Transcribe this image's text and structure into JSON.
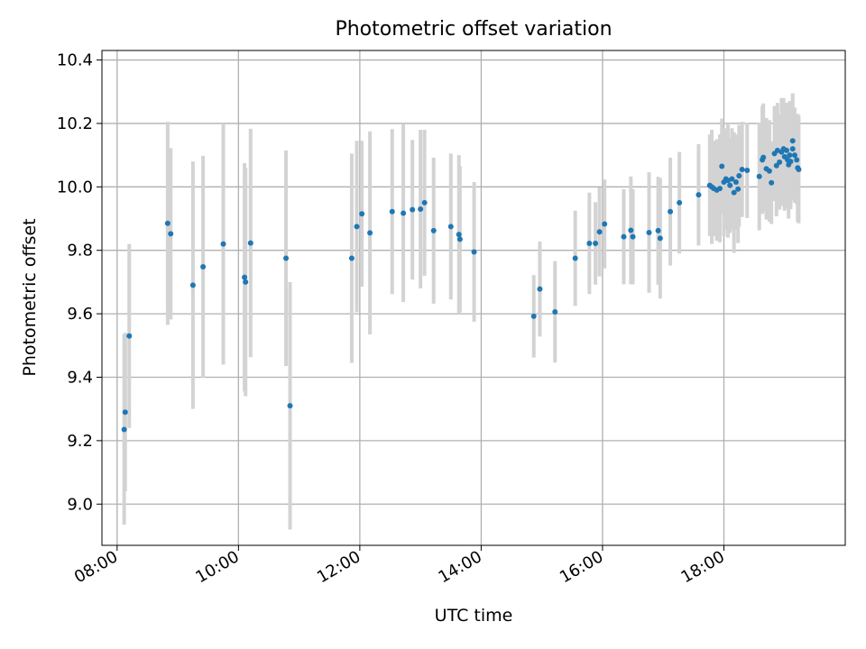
{
  "chart_data": {
    "type": "scatter",
    "title": "Photometric offset variation",
    "xlabel": "UTC time",
    "ylabel": "Photometric offset",
    "x_unit": "UTC time (HH:MM)",
    "xlim": [
      "07:45",
      "20:00"
    ],
    "ylim": [
      8.87,
      10.43
    ],
    "x_ticks": [
      "08:00",
      "10:00",
      "12:00",
      "14:00",
      "16:00",
      "18:00"
    ],
    "y_ticks": [
      "9.0",
      "9.2",
      "9.4",
      "9.6",
      "9.8",
      "10.0",
      "10.2",
      "10.4"
    ],
    "grid": true,
    "colors": {
      "points": "#1f77b4",
      "errorbars": "#d3d3d3",
      "grid": "#b0b0b0"
    },
    "series": [
      {
        "points": [
          [
            "08:07",
            9.235,
            0.3
          ],
          [
            "08:08",
            9.29,
            0.25
          ],
          [
            "08:12",
            9.53,
            0.29
          ],
          [
            "08:50",
            9.885,
            0.32
          ],
          [
            "08:53",
            9.852,
            0.27
          ],
          [
            "09:15",
            9.69,
            0.39
          ],
          [
            "09:25",
            9.748,
            0.35
          ],
          [
            "09:45",
            9.82,
            0.38
          ],
          [
            "10:06",
            9.715,
            0.36
          ],
          [
            "10:07",
            9.7,
            0.36
          ],
          [
            "10:12",
            9.823,
            0.36
          ],
          [
            "10:47",
            9.775,
            0.34
          ],
          [
            "10:51",
            9.31,
            0.39
          ],
          [
            "11:52",
            9.775,
            0.33
          ],
          [
            "11:57",
            9.875,
            0.27
          ],
          [
            "12:02",
            9.915,
            0.23
          ],
          [
            "12:10",
            9.855,
            0.32
          ],
          [
            "12:32",
            9.922,
            0.26
          ],
          [
            "12:43",
            9.917,
            0.28
          ],
          [
            "12:52",
            9.928,
            0.22
          ],
          [
            "13:00",
            9.93,
            0.25
          ],
          [
            "13:04",
            9.95,
            0.23
          ],
          [
            "13:13",
            9.862,
            0.23
          ],
          [
            "13:30",
            9.875,
            0.23
          ],
          [
            "13:38",
            9.85,
            0.25
          ],
          [
            "13:39",
            9.835,
            0.23
          ],
          [
            "13:53",
            9.795,
            0.22
          ],
          [
            "14:52",
            9.592,
            0.13
          ],
          [
            "14:58",
            9.678,
            0.15
          ],
          [
            "15:13",
            9.606,
            0.16
          ],
          [
            "15:33",
            9.775,
            0.15
          ],
          [
            "15:47",
            9.822,
            0.16
          ],
          [
            "15:53",
            9.822,
            0.13
          ],
          [
            "15:57",
            9.858,
            0.14
          ],
          [
            "16:02",
            9.883,
            0.14
          ],
          [
            "16:21",
            9.843,
            0.15
          ],
          [
            "16:28",
            9.863,
            0.17
          ],
          [
            "16:30",
            9.843,
            0.15
          ],
          [
            "16:46",
            9.856,
            0.19
          ],
          [
            "16:55",
            9.862,
            0.17
          ],
          [
            "16:57",
            9.838,
            0.19
          ],
          [
            "17:07",
            9.922,
            0.17
          ],
          [
            "17:16",
            9.95,
            0.16
          ],
          [
            "17:35",
            9.975,
            0.16
          ],
          [
            "17:46",
            10.005,
            0.16
          ],
          [
            "17:48",
            10.0,
            0.18
          ],
          [
            "17:50",
            9.995,
            0.15
          ],
          [
            "17:53",
            9.99,
            0.16
          ],
          [
            "17:56",
            9.995,
            0.17
          ],
          [
            "17:58",
            10.065,
            0.15
          ],
          [
            "18:00",
            10.015,
            0.17
          ],
          [
            "18:02",
            10.025,
            0.16
          ],
          [
            "18:04",
            10.02,
            0.18
          ],
          [
            "18:06",
            10.005,
            0.15
          ],
          [
            "18:08",
            10.025,
            0.16
          ],
          [
            "18:10",
            9.982,
            0.19
          ],
          [
            "18:12",
            10.015,
            0.15
          ],
          [
            "18:14",
            9.993,
            0.17
          ],
          [
            "18:15",
            10.035,
            0.16
          ],
          [
            "18:18",
            10.055,
            0.15
          ],
          [
            "18:23",
            10.052,
            0.15
          ],
          [
            "18:35",
            10.033,
            0.17
          ],
          [
            "18:38",
            10.085,
            0.17
          ],
          [
            "18:39",
            10.093,
            0.17
          ],
          [
            "18:42",
            10.057,
            0.16
          ],
          [
            "18:45",
            10.05,
            0.16
          ],
          [
            "18:47",
            10.013,
            0.13
          ],
          [
            "18:50",
            10.105,
            0.15
          ],
          [
            "18:52",
            10.067,
            0.16
          ],
          [
            "18:53",
            10.115,
            0.15
          ],
          [
            "18:55",
            10.078,
            0.15
          ],
          [
            "18:57",
            10.11,
            0.17
          ],
          [
            "18:59",
            10.12,
            0.16
          ],
          [
            "19:00",
            10.095,
            0.17
          ],
          [
            "19:02",
            10.115,
            0.15
          ],
          [
            "19:03",
            10.085,
            0.15
          ],
          [
            "19:04",
            10.07,
            0.17
          ],
          [
            "19:05",
            10.1,
            0.17
          ],
          [
            "19:06",
            10.08,
            0.15
          ],
          [
            "19:08",
            10.145,
            0.15
          ],
          [
            "19:08",
            10.12,
            0.16
          ],
          [
            "19:10",
            10.1,
            0.15
          ],
          [
            "19:12",
            10.085,
            0.14
          ],
          [
            "19:13",
            10.06,
            0.17
          ],
          [
            "19:14",
            10.055,
            0.17
          ]
        ]
      }
    ]
  }
}
